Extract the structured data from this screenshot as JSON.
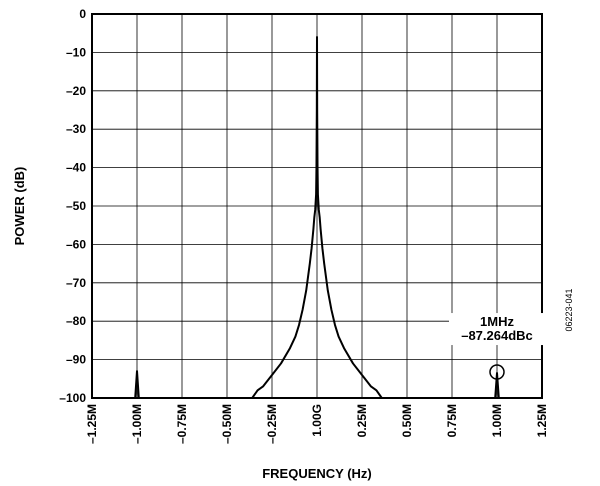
{
  "chart_data": {
    "type": "line",
    "title": "",
    "xlabel": "FREQUENCY (Hz)",
    "ylabel": "POWER (dB)",
    "xlim": [
      -1.25,
      1.25
    ],
    "ylim": [
      -100,
      0
    ],
    "grid": true,
    "x_ticks": [
      {
        "value": -1.25,
        "label": "–1.25M"
      },
      {
        "value": -1.0,
        "label": "–1.00M"
      },
      {
        "value": -0.75,
        "label": "–0.75M"
      },
      {
        "value": -0.5,
        "label": "–0.50M"
      },
      {
        "value": -0.25,
        "label": "–0.25M"
      },
      {
        "value": 0,
        "label": "1.00G"
      },
      {
        "value": 0.25,
        "label": "0.25M"
      },
      {
        "value": 0.5,
        "label": "0.50M"
      },
      {
        "value": 0.75,
        "label": "0.75M"
      },
      {
        "value": 1.0,
        "label": "1.00M"
      },
      {
        "value": 1.25,
        "label": "1.25M"
      }
    ],
    "y_ticks": [
      {
        "value": 0,
        "label": "0"
      },
      {
        "value": -10,
        "label": "–10"
      },
      {
        "value": -20,
        "label": "–20"
      },
      {
        "value": -30,
        "label": "–30"
      },
      {
        "value": -40,
        "label": "–40"
      },
      {
        "value": -50,
        "label": "–50"
      },
      {
        "value": -60,
        "label": "–60"
      },
      {
        "value": -70,
        "label": "–70"
      },
      {
        "value": -80,
        "label": "–80"
      },
      {
        "value": -90,
        "label": "–90"
      },
      {
        "value": -100,
        "label": "–100"
      }
    ],
    "series": [
      {
        "x": [
          -1.25,
          -1.01,
          -1.0,
          -0.99,
          -0.36,
          -0.33,
          -0.3,
          -0.25,
          -0.2,
          -0.15,
          -0.12,
          -0.1,
          -0.08,
          -0.06,
          -0.04,
          -0.03,
          -0.02,
          -0.015,
          -0.01,
          -0.005,
          -0.003,
          -0.001,
          0,
          0.001,
          0.003,
          0.005,
          0.01,
          0.015,
          0.02,
          0.03,
          0.04,
          0.06,
          0.08,
          0.1,
          0.12,
          0.15,
          0.2,
          0.25,
          0.3,
          0.33,
          0.36,
          0.99,
          1.0,
          1.01,
          1.25
        ],
        "y": [
          -100,
          -100,
          -93,
          -100,
          -100,
          -98,
          -97,
          -94,
          -91,
          -87,
          -84,
          -81,
          -77,
          -72,
          -65,
          -61,
          -56,
          -53,
          -51,
          -47,
          -40,
          -25,
          -6,
          -25,
          -40,
          -47,
          -51,
          -53,
          -56,
          -61,
          -65,
          -72,
          -77,
          -81,
          -84,
          -87,
          -91,
          -94,
          -97,
          -98,
          -100,
          -100,
          -93.5,
          -100,
          -100
        ]
      }
    ],
    "annotations": [
      {
        "x": 1.0,
        "y": -93.5,
        "text": [
          "1MHz",
          "–87.264dBc"
        ],
        "marker": "circle"
      }
    ],
    "figure_id": "06223-041"
  }
}
